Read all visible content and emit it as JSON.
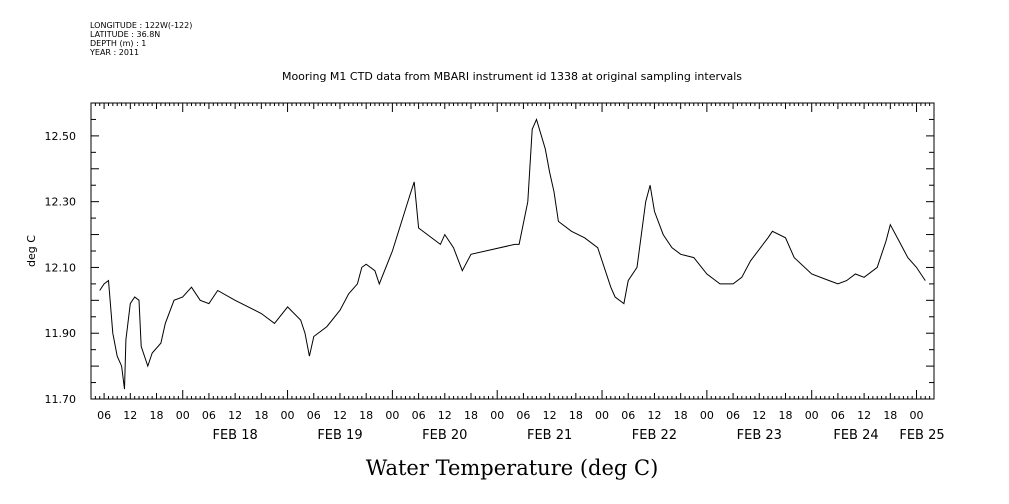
{
  "header": {
    "lines": [
      "LONGITUDE : 122W(-122)",
      "LATITUDE : 36.8N",
      "DEPTH (m) : 1",
      "YEAR : 2011"
    ]
  },
  "chart_data": {
    "type": "line",
    "title": "Mooring M1 CTD data from MBARI instrument id 1338 at original sampling intervals",
    "xlabel": "Water Temperature (deg C)",
    "ylabel": "deg C",
    "ylim": [
      11.7,
      12.6
    ],
    "y_ticks": [
      "11.70",
      "11.90",
      "12.10",
      "12.30",
      "12.50"
    ],
    "x_range": [
      "2011-02-17 03:00",
      "2011-02-25 04:00"
    ],
    "hour_tick_labels": [
      "06",
      "12",
      "18",
      "00",
      "06",
      "12",
      "18",
      "00",
      "06",
      "12",
      "18",
      "00",
      "06",
      "12",
      "18",
      "00",
      "06",
      "12",
      "18",
      "00",
      "06",
      "12",
      "18",
      "00",
      "06",
      "12",
      "18",
      "00",
      "06",
      "12",
      "18",
      "00"
    ],
    "day_labels": [
      {
        "date": "2011-02-18 00:00",
        "label": "FEB 18"
      },
      {
        "date": "2011-02-19 00:00",
        "label": "FEB 19"
      },
      {
        "date": "2011-02-20 00:00",
        "label": "FEB 20"
      },
      {
        "date": "2011-02-21 00:00",
        "label": "FEB 21"
      },
      {
        "date": "2011-02-22 00:00",
        "label": "FEB 22"
      },
      {
        "date": "2011-02-23 00:00",
        "label": "FEB 23"
      },
      {
        "date": "2011-02-24 00:00",
        "label": "FEB 24"
      },
      {
        "date": "2011-02-25 00:00",
        "label": "FEB 25"
      }
    ],
    "series": [
      {
        "values": [
          [
            "2011-02-17 05:00",
            12.03
          ],
          [
            "2011-02-17 06:00",
            12.05
          ],
          [
            "2011-02-17 07:00",
            12.06
          ],
          [
            "2011-02-17 08:00",
            11.9
          ],
          [
            "2011-02-17 09:00",
            11.83
          ],
          [
            "2011-02-17 10:00",
            11.8
          ],
          [
            "2011-02-17 10:40",
            11.73
          ],
          [
            "2011-02-17 11:00",
            11.88
          ],
          [
            "2011-02-17 12:00",
            11.99
          ],
          [
            "2011-02-17 13:00",
            12.01
          ],
          [
            "2011-02-17 14:00",
            12.0
          ],
          [
            "2011-02-17 14:30",
            11.86
          ],
          [
            "2011-02-17 16:00",
            11.8
          ],
          [
            "2011-02-17 17:00",
            11.84
          ],
          [
            "2011-02-17 19:00",
            11.87
          ],
          [
            "2011-02-17 20:00",
            11.93
          ],
          [
            "2011-02-17 22:00",
            12.0
          ],
          [
            "2011-02-18 00:00",
            12.01
          ],
          [
            "2011-02-18 02:00",
            12.04
          ],
          [
            "2011-02-18 04:00",
            12.0
          ],
          [
            "2011-02-18 06:00",
            11.99
          ],
          [
            "2011-02-18 08:00",
            12.03
          ],
          [
            "2011-02-18 12:00",
            12.0
          ],
          [
            "2011-02-18 18:00",
            11.96
          ],
          [
            "2011-02-18 21:00",
            11.93
          ],
          [
            "2011-02-19 00:00",
            11.98
          ],
          [
            "2011-02-19 03:00",
            11.94
          ],
          [
            "2011-02-19 04:00",
            11.9
          ],
          [
            "2011-02-19 05:00",
            11.83
          ],
          [
            "2011-02-19 06:00",
            11.89
          ],
          [
            "2011-02-19 09:00",
            11.92
          ],
          [
            "2011-02-19 12:00",
            11.97
          ],
          [
            "2011-02-19 14:00",
            12.02
          ],
          [
            "2011-02-19 16:00",
            12.05
          ],
          [
            "2011-02-19 17:00",
            12.1
          ],
          [
            "2011-02-19 18:00",
            12.11
          ],
          [
            "2011-02-19 20:00",
            12.09
          ],
          [
            "2011-02-19 21:00",
            12.05
          ],
          [
            "2011-02-20 00:00",
            12.15
          ],
          [
            "2011-02-20 04:00",
            12.32
          ],
          [
            "2011-02-20 05:00",
            12.36
          ],
          [
            "2011-02-20 06:00",
            12.22
          ],
          [
            "2011-02-20 11:00",
            12.17
          ],
          [
            "2011-02-20 12:00",
            12.2
          ],
          [
            "2011-02-20 14:00",
            12.16
          ],
          [
            "2011-02-20 16:00",
            12.09
          ],
          [
            "2011-02-20 18:00",
            12.14
          ],
          [
            "2011-02-21 04:00",
            12.17
          ],
          [
            "2011-02-21 05:00",
            12.17
          ],
          [
            "2011-02-21 07:00",
            12.3
          ],
          [
            "2011-02-21 08:00",
            12.52
          ],
          [
            "2011-02-21 09:00",
            12.55
          ],
          [
            "2011-02-21 11:00",
            12.46
          ],
          [
            "2011-02-21 12:00",
            12.39
          ],
          [
            "2011-02-21 13:00",
            12.33
          ],
          [
            "2011-02-21 14:00",
            12.24
          ],
          [
            "2011-02-21 17:00",
            12.21
          ],
          [
            "2011-02-21 20:00",
            12.19
          ],
          [
            "2011-02-21 23:00",
            12.16
          ],
          [
            "2011-02-22 02:00",
            12.04
          ],
          [
            "2011-02-22 03:00",
            12.01
          ],
          [
            "2011-02-22 05:00",
            11.99
          ],
          [
            "2011-02-22 06:00",
            12.06
          ],
          [
            "2011-02-22 08:00",
            12.1
          ],
          [
            "2011-02-22 10:00",
            12.3
          ],
          [
            "2011-02-22 11:00",
            12.35
          ],
          [
            "2011-02-22 12:00",
            12.27
          ],
          [
            "2011-02-22 14:00",
            12.2
          ],
          [
            "2011-02-22 16:00",
            12.16
          ],
          [
            "2011-02-22 18:00",
            12.14
          ],
          [
            "2011-02-22 21:00",
            12.13
          ],
          [
            "2011-02-23 00:00",
            12.08
          ],
          [
            "2011-02-23 03:00",
            12.05
          ],
          [
            "2011-02-23 06:00",
            12.05
          ],
          [
            "2011-02-23 08:00",
            12.07
          ],
          [
            "2011-02-23 10:00",
            12.12
          ],
          [
            "2011-02-23 14:00",
            12.19
          ],
          [
            "2011-02-23 15:00",
            12.21
          ],
          [
            "2011-02-23 18:00",
            12.19
          ],
          [
            "2011-02-23 20:00",
            12.13
          ],
          [
            "2011-02-24 00:00",
            12.08
          ],
          [
            "2011-02-24 04:00",
            12.06
          ],
          [
            "2011-02-24 06:00",
            12.05
          ],
          [
            "2011-02-24 08:00",
            12.06
          ],
          [
            "2011-02-24 10:00",
            12.08
          ],
          [
            "2011-02-24 12:00",
            12.07
          ],
          [
            "2011-02-24 15:00",
            12.1
          ],
          [
            "2011-02-24 17:00",
            12.18
          ],
          [
            "2011-02-24 18:00",
            12.23
          ],
          [
            "2011-02-24 20:00",
            12.18
          ],
          [
            "2011-02-24 22:00",
            12.13
          ],
          [
            "2011-02-25 00:00",
            12.1
          ],
          [
            "2011-02-25 02:00",
            12.06
          ]
        ]
      }
    ],
    "grid": false
  }
}
